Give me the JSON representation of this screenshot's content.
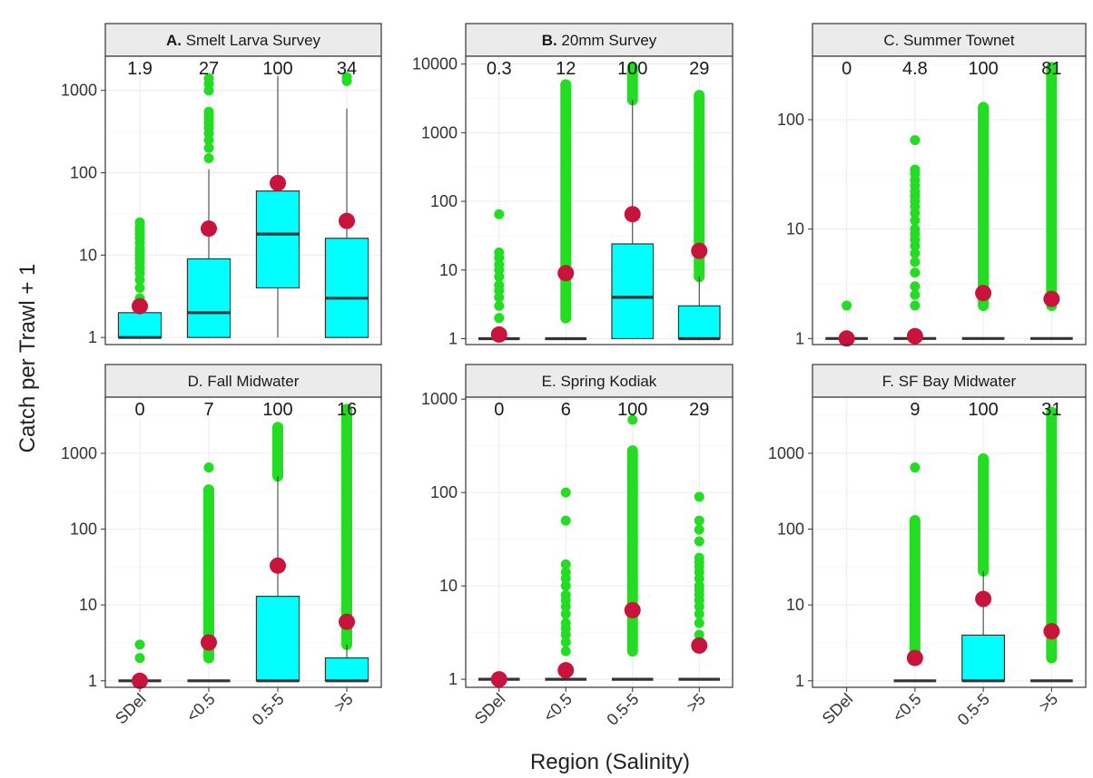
{
  "chart_data": {
    "type": "box",
    "xlabel": "Region (Salinity)",
    "ylabel": "Catch per Trawl + 1",
    "yscale": "log",
    "categories": [
      "SDel",
      "<0.5",
      "0.5-5",
      ">5"
    ],
    "grid": true,
    "colors": {
      "box": "#00ffff",
      "outlier": "#22dd22",
      "mean": "#c8143c",
      "strip": "#ebebeb"
    },
    "panels": [
      {
        "letter": "A.",
        "name": " Smelt Larva Survey",
        "letter_bold": true,
        "ylim": [
          0.82,
          2600
        ],
        "yticks": [
          1,
          10,
          100,
          1000
        ],
        "percent_labels": [
          "1.9",
          "27",
          "100",
          "34"
        ],
        "boxes": [
          {
            "category": "SDel",
            "lower": 1,
            "q1": 1,
            "median": 1,
            "q3": 2,
            "upper": 2,
            "mean": 2.4,
            "outliers": [
              3,
              4,
              5,
              6,
              7,
              8,
              9,
              10,
              11,
              12,
              14,
              16,
              18,
              20,
              22,
              25
            ]
          },
          {
            "category": "<0.5",
            "lower": 1,
            "q1": 1,
            "median": 2,
            "q3": 9,
            "upper": 110,
            "mean": 21,
            "outliers": [
              150,
              200,
              250,
              300,
              350,
              400,
              450,
              500,
              550,
              1000,
              1200,
              1400
            ]
          },
          {
            "category": "0.5-5",
            "lower": 1,
            "q1": 4,
            "median": 18,
            "q3": 60,
            "upper": 1500,
            "mean": 75,
            "outliers": []
          },
          {
            "category": ">5",
            "lower": 1,
            "q1": 1,
            "median": 3,
            "q3": 16,
            "upper": 600,
            "mean": 26,
            "outliers": [
              1300,
              1450
            ]
          }
        ]
      },
      {
        "letter": "B.",
        "name": " 20mm Survey",
        "letter_bold": true,
        "ylim": [
          0.82,
          13000
        ],
        "yticks": [
          1,
          10,
          100,
          1000,
          10000
        ],
        "percent_labels": [
          "0.3",
          "12",
          "100",
          "29"
        ],
        "boxes": [
          {
            "category": "SDel",
            "lower": 1,
            "q1": 1,
            "median": 1,
            "q3": 1,
            "upper": 1,
            "mean": 1.15,
            "outliers": [
              2,
              3,
              4,
              5,
              6,
              8,
              10,
              12,
              15,
              18,
              65
            ]
          },
          {
            "category": "<0.5",
            "lower": 1,
            "q1": 1,
            "median": 1,
            "q3": 1,
            "upper": 1,
            "mean": 9,
            "dense_outliers": [
              2,
              5000
            ]
          },
          {
            "category": "0.5-5",
            "lower": 1,
            "q1": 1,
            "median": 4,
            "q3": 24,
            "upper": 3000,
            "mean": 65,
            "dense_outliers": [
              3000,
              9000
            ]
          },
          {
            "category": ">5",
            "lower": 1,
            "q1": 1,
            "median": 1,
            "q3": 3,
            "upper": 8,
            "mean": 19,
            "dense_outliers": [
              8,
              3500
            ]
          }
        ]
      },
      {
        "letter": "C.",
        "name": " Summer Townet",
        "letter_bold": false,
        "ylim": [
          0.88,
          380
        ],
        "yticks": [
          1,
          10,
          100
        ],
        "percent_labels": [
          "0",
          "4.8",
          "100",
          "81"
        ],
        "boxes": [
          {
            "category": "SDel",
            "lower": 1,
            "q1": 1,
            "median": 1,
            "q3": 1,
            "upper": 1,
            "mean": 1.0,
            "outliers": [
              2
            ]
          },
          {
            "category": "<0.5",
            "lower": 1,
            "q1": 1,
            "median": 1,
            "q3": 1,
            "upper": 1,
            "mean": 1.05,
            "outliers": [
              2,
              2.5,
              3,
              4,
              5,
              6,
              7,
              8,
              9,
              10,
              12,
              14,
              16,
              18,
              20,
              22,
              25,
              28,
              32,
              35,
              65
            ]
          },
          {
            "category": "0.5-5",
            "lower": 1,
            "q1": 1,
            "median": 1,
            "q3": 1,
            "upper": 1,
            "mean": 2.6,
            "dense_outliers": [
              2,
              130
            ]
          },
          {
            "category": ">5",
            "lower": 1,
            "q1": 1,
            "median": 1,
            "q3": 1,
            "upper": 1,
            "mean": 2.3,
            "dense_outliers": [
              2,
              300
            ]
          }
        ]
      },
      {
        "letter": "D.",
        "name": " Fall Midwater",
        "letter_bold": false,
        "ylim": [
          0.82,
          5500
        ],
        "yticks": [
          1,
          10,
          100,
          1000
        ],
        "percent_labels": [
          "0",
          "7",
          "100",
          "16"
        ],
        "boxes": [
          {
            "category": "SDel",
            "lower": 1,
            "q1": 1,
            "median": 1,
            "q3": 1,
            "upper": 1,
            "mean": 1.0,
            "outliers": [
              2,
              3
            ]
          },
          {
            "category": "<0.5",
            "lower": 1,
            "q1": 1,
            "median": 1,
            "q3": 1,
            "upper": 1,
            "mean": 3.2,
            "dense_outliers": [
              2,
              330
            ],
            "outliers": [
              650
            ]
          },
          {
            "category": "0.5-5",
            "lower": 1,
            "q1": 1,
            "median": 1,
            "q3": 13,
            "upper": 500,
            "mean": 33,
            "dense_outliers": [
              500,
              2200
            ]
          },
          {
            "category": ">5",
            "lower": 1,
            "q1": 1,
            "median": 1,
            "q3": 2,
            "upper": 3,
            "mean": 6,
            "dense_outliers": [
              3,
              3800
            ]
          }
        ]
      },
      {
        "letter": "E.",
        "name": " Spring Kodiak",
        "letter_bold": false,
        "ylim": [
          0.82,
          1050
        ],
        "yticks": [
          1,
          10,
          100,
          1000
        ],
        "percent_labels": [
          "0",
          "6",
          "100",
          "29"
        ],
        "boxes": [
          {
            "category": "SDel",
            "lower": 1,
            "q1": 1,
            "median": 1,
            "q3": 1,
            "upper": 1,
            "mean": 1.0,
            "outliers": []
          },
          {
            "category": "<0.5",
            "lower": 1,
            "q1": 1,
            "median": 1,
            "q3": 1,
            "upper": 1,
            "mean": 1.25,
            "outliers": [
              2,
              2.5,
              3,
              3.5,
              4,
              5,
              6,
              7,
              8,
              10,
              12,
              14,
              17,
              50,
              100
            ]
          },
          {
            "category": "0.5-5",
            "lower": 1,
            "q1": 1,
            "median": 1,
            "q3": 1,
            "upper": 1,
            "mean": 5.5,
            "dense_outliers": [
              2,
              280
            ],
            "outliers": [
              600
            ]
          },
          {
            "category": ">5",
            "lower": 1,
            "q1": 1,
            "median": 1,
            "q3": 1,
            "upper": 1,
            "mean": 2.3,
            "outliers": [
              2.5,
              3,
              4,
              5,
              6,
              7,
              8,
              9,
              10,
              12,
              14,
              16,
              18,
              20,
              30,
              40,
              50,
              90
            ]
          }
        ]
      },
      {
        "letter": "F.",
        "name": " SF Bay Midwater",
        "letter_bold": false,
        "ylim": [
          0.82,
          5500
        ],
        "yticks": [
          1,
          10,
          100,
          1000
        ],
        "percent_labels": [
          "",
          "9",
          "100",
          "31"
        ],
        "boxes": [
          {
            "category": "<0.5",
            "lower": 1,
            "q1": 1,
            "median": 1,
            "q3": 1,
            "upper": 1,
            "mean": 2.0,
            "dense_outliers": [
              2,
              130
            ],
            "outliers": [
              650
            ]
          },
          {
            "category": "0.5-5",
            "lower": 1,
            "q1": 1,
            "median": 1,
            "q3": 4,
            "upper": 28,
            "mean": 12,
            "dense_outliers": [
              28,
              850
            ]
          },
          {
            "category": ">5",
            "lower": 1,
            "q1": 1,
            "median": 1,
            "q3": 1,
            "upper": 1,
            "mean": 4.5,
            "dense_outliers": [
              2,
              3500
            ]
          }
        ]
      }
    ]
  }
}
